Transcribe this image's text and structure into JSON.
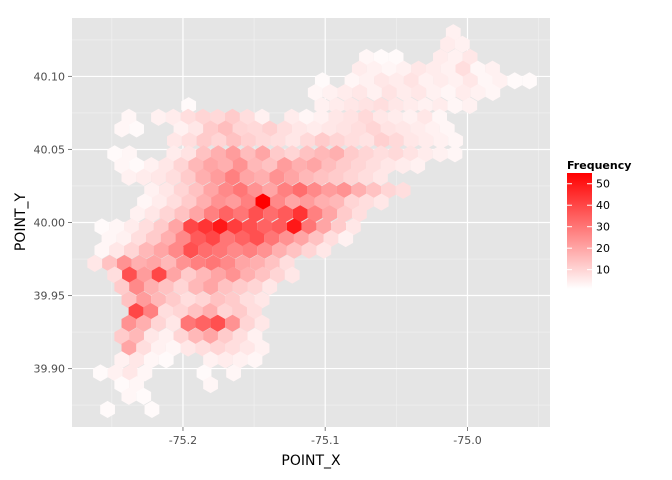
{
  "chart_data": {
    "type": "heatmap",
    "subtype": "hexbin",
    "title": "",
    "xlabel": "POINT_X",
    "ylabel": "POINT_Y",
    "xlim": [
      -75.278,
      -74.942
    ],
    "ylim": [
      39.86,
      40.14
    ],
    "x_ticks": [
      -75.2,
      -75.1,
      -75.0
    ],
    "x_tick_labels": [
      "-75.2",
      "-75.1",
      "-75.0"
    ],
    "y_ticks": [
      39.9,
      39.95,
      40.0,
      40.05,
      40.1
    ],
    "y_tick_labels": [
      "39.90",
      "39.95",
      "40.00",
      "40.05",
      "40.10"
    ],
    "grid": true,
    "panel_background": "#e5e5e5",
    "grid_color": "#ffffff",
    "legend": {
      "title": "Frequency",
      "position": "right",
      "min": 1,
      "max": 55,
      "breaks": [
        10,
        20,
        30,
        40,
        50
      ],
      "low_color": "#ffffff",
      "high_color": "#ff0000"
    },
    "hex_width": 0.0104,
    "hex_rows": [
      {
        "y": 40.13,
        "x_start": -75.01,
        "counts": [
          4
        ]
      },
      {
        "y": 40.122,
        "x_start": -75.014,
        "counts": [
          5,
          4
        ]
      },
      {
        "y": 40.113,
        "x_start": -75.071,
        "counts": [
          3,
          2,
          2,
          0,
          0,
          5,
          4,
          6
        ]
      },
      {
        "y": 40.105,
        "x_start": -75.076,
        "counts": [
          5,
          4,
          3,
          4,
          6,
          5,
          4,
          8,
          3,
          4
        ]
      },
      {
        "y": 40.097,
        "x_start": -75.102,
        "counts": [
          2,
          0,
          3,
          4,
          6,
          5,
          7,
          4,
          5,
          4,
          6,
          3,
          4,
          2,
          2
        ]
      },
      {
        "y": 40.089,
        "x_start": -75.107,
        "counts": [
          3,
          4,
          5,
          6,
          4,
          7,
          5,
          6,
          4,
          3,
          5,
          4,
          3
        ]
      },
      {
        "y": 40.08,
        "x_start": -75.196,
        "counts": [
          2,
          0,
          0,
          0,
          0,
          0,
          0,
          0,
          0,
          4,
          5,
          6,
          7,
          8,
          6,
          5,
          4,
          5,
          3,
          4
        ]
      },
      {
        "y": 40.072,
        "x_start": -75.238,
        "counts": [
          3,
          0,
          4,
          5,
          8,
          10,
          9,
          12,
          8,
          4,
          0,
          5,
          3,
          4,
          6,
          7,
          9,
          6,
          5,
          4,
          6,
          3
        ]
      },
      {
        "y": 40.064,
        "x_start": -75.243,
        "counts": [
          3,
          2,
          0,
          0,
          4,
          6,
          12,
          15,
          10,
          9,
          11,
          8,
          6,
          5,
          6,
          7,
          8,
          10,
          7,
          6,
          5,
          4,
          3
        ]
      },
      {
        "y": 40.056,
        "x_start": -75.206,
        "counts": [
          6,
          8,
          12,
          10,
          14,
          11,
          9,
          8,
          6,
          9,
          12,
          10,
          8,
          7,
          11,
          9,
          6,
          5,
          4,
          3
        ]
      },
      {
        "y": 40.047,
        "x_start": -75.248,
        "counts": [
          2,
          3,
          0,
          0,
          5,
          7,
          14,
          18,
          22,
          15,
          20,
          12,
          10,
          14,
          16,
          18,
          12,
          10,
          8,
          9,
          7,
          5,
          4,
          3
        ]
      },
      {
        "y": 40.039,
        "x_start": -75.243,
        "counts": [
          3,
          2,
          4,
          6,
          10,
          16,
          20,
          18,
          24,
          16,
          14,
          22,
          18,
          20,
          15,
          12,
          10,
          8,
          6,
          5,
          4
        ]
      },
      {
        "y": 40.031,
        "x_start": -75.238,
        "counts": [
          4,
          5,
          6,
          8,
          12,
          18,
          22,
          28,
          20,
          18,
          24,
          20,
          16,
          14,
          12,
          10,
          8,
          6
        ]
      },
      {
        "y": 40.022,
        "x_start": -75.222,
        "counts": [
          4,
          6,
          10,
          14,
          20,
          26,
          30,
          24,
          20,
          28,
          32,
          26,
          22,
          24,
          18,
          14,
          10,
          8
        ]
      },
      {
        "y": 40.014,
        "x_start": -75.227,
        "counts": [
          3,
          5,
          8,
          12,
          18,
          24,
          22,
          28,
          55,
          26,
          20,
          22,
          18,
          16,
          10,
          8,
          6
        ]
      },
      {
        "y": 40.006,
        "x_start": -75.232,
        "counts": [
          4,
          6,
          10,
          14,
          20,
          28,
          34,
          30,
          38,
          32,
          36,
          44,
          28,
          20,
          12,
          8
        ]
      },
      {
        "y": 39.997,
        "x_start": -75.257,
        "counts": [
          2,
          3,
          5,
          8,
          12,
          20,
          40,
          44,
          50,
          42,
          38,
          34,
          36,
          50,
          30,
          20,
          12,
          6
        ]
      },
      {
        "y": 39.989,
        "x_start": -75.252,
        "counts": [
          3,
          4,
          8,
          12,
          18,
          26,
          36,
          40,
          30,
          34,
          38,
          30,
          24,
          20,
          14,
          8,
          4
        ]
      },
      {
        "y": 39.981,
        "x_start": -75.257,
        "counts": [
          3,
          6,
          10,
          16,
          20,
          26,
          38,
          32,
          30,
          26,
          28,
          24,
          18,
          14,
          10,
          6
        ]
      },
      {
        "y": 39.972,
        "x_start": -75.262,
        "counts": [
          6,
          14,
          24,
          18,
          20,
          16,
          24,
          28,
          30,
          26,
          20,
          18,
          14,
          8
        ]
      },
      {
        "y": 39.964,
        "x_start": -75.248,
        "counts": [
          8,
          38,
          22,
          40,
          20,
          12,
          16,
          20,
          24,
          18,
          14,
          10,
          6
        ]
      },
      {
        "y": 39.956,
        "x_start": -75.243,
        "counts": [
          12,
          26,
          18,
          14,
          10,
          16,
          20,
          14,
          12,
          10,
          6
        ]
      },
      {
        "y": 39.947,
        "x_start": -75.238,
        "counts": [
          14,
          22,
          16,
          12,
          8,
          10,
          14,
          12,
          8,
          6
        ]
      },
      {
        "y": 39.939,
        "x_start": -75.233,
        "counts": [
          40,
          28,
          8,
          10,
          14,
          18,
          10,
          12,
          8
        ]
      },
      {
        "y": 39.931,
        "x_start": -75.238,
        "counts": [
          24,
          18,
          10,
          6,
          30,
          34,
          38,
          24,
          10,
          6
        ]
      },
      {
        "y": 39.922,
        "x_start": -75.243,
        "counts": [
          12,
          16,
          6,
          4,
          10,
          16,
          20,
          12,
          8,
          4
        ]
      },
      {
        "y": 39.914,
        "x_start": -75.238,
        "counts": [
          20,
          8,
          4,
          3,
          6,
          8,
          10,
          8,
          6,
          4
        ]
      },
      {
        "y": 39.906,
        "x_start": -75.243,
        "counts": [
          4,
          6,
          3,
          2,
          0,
          0,
          4,
          5,
          4,
          3
        ]
      },
      {
        "y": 39.897,
        "x_start": -75.258,
        "counts": [
          2,
          4,
          6,
          3,
          0,
          0,
          0,
          2,
          0,
          3
        ]
      },
      {
        "y": 39.889,
        "x_start": -75.243,
        "counts": [
          2,
          3,
          0,
          0,
          0,
          0,
          3
        ]
      },
      {
        "y": 39.881,
        "x_start": -75.238,
        "counts": [
          3,
          2
        ]
      },
      {
        "y": 39.872,
        "x_start": -75.253,
        "counts": [
          2,
          0,
          0,
          2
        ]
      }
    ]
  }
}
